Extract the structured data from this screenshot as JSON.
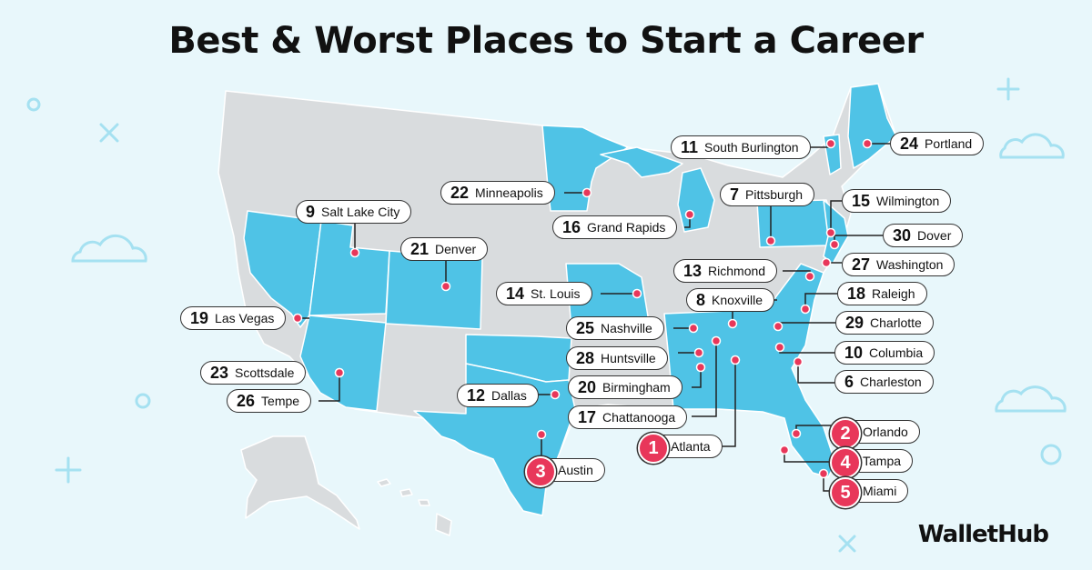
{
  "title": "Best & Worst Places to Start a Career",
  "brand": "WalletHub",
  "colors": {
    "background": "#e8f7fb",
    "highlighted_state": "#4fc3e6",
    "other_state": "#d9dcde",
    "marker": "#e8375a",
    "decoration": "#a5e1f1"
  },
  "cities": [
    {
      "rank": "1",
      "name": "Atlanta"
    },
    {
      "rank": "2",
      "name": "Orlando"
    },
    {
      "rank": "3",
      "name": "Austin"
    },
    {
      "rank": "4",
      "name": "Tampa"
    },
    {
      "rank": "5",
      "name": "Miami"
    },
    {
      "rank": "6",
      "name": "Charleston"
    },
    {
      "rank": "7",
      "name": "Pittsburgh"
    },
    {
      "rank": "8",
      "name": "Knoxville"
    },
    {
      "rank": "9",
      "name": "Salt Lake City"
    },
    {
      "rank": "10",
      "name": "Columbia"
    },
    {
      "rank": "11",
      "name": "South Burlington"
    },
    {
      "rank": "12",
      "name": "Dallas"
    },
    {
      "rank": "13",
      "name": "Richmond"
    },
    {
      "rank": "14",
      "name": "St. Louis"
    },
    {
      "rank": "15",
      "name": "Wilmington"
    },
    {
      "rank": "16",
      "name": "Grand Rapids"
    },
    {
      "rank": "17",
      "name": "Chattanooga"
    },
    {
      "rank": "18",
      "name": "Raleigh"
    },
    {
      "rank": "19",
      "name": "Las Vegas"
    },
    {
      "rank": "20",
      "name": "Birmingham"
    },
    {
      "rank": "21",
      "name": "Denver"
    },
    {
      "rank": "22",
      "name": "Minneapolis"
    },
    {
      "rank": "23",
      "name": "Scottsdale"
    },
    {
      "rank": "24",
      "name": "Portland"
    },
    {
      "rank": "25",
      "name": "Nashville"
    },
    {
      "rank": "26",
      "name": "Tempe"
    },
    {
      "rank": "27",
      "name": "Washington"
    },
    {
      "rank": "28",
      "name": "Huntsville"
    },
    {
      "rank": "29",
      "name": "Charlotte"
    },
    {
      "rank": "30",
      "name": "Dover"
    }
  ]
}
